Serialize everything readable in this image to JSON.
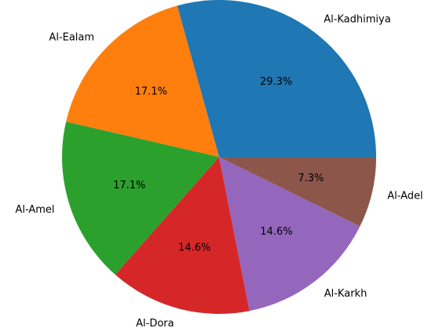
{
  "chart_data": {
    "type": "pie",
    "categories": [
      "Al-Kadhimiya",
      "Al-Ealam",
      "Al-Amel",
      "Al-Dora",
      "Al-Karkh",
      "Al-Adel"
    ],
    "values": [
      29.3,
      17.1,
      17.1,
      14.6,
      14.6,
      7.3
    ],
    "value_labels": [
      "29.3%",
      "17.1%",
      "17.1%",
      "14.6%",
      "14.6%",
      "7.3%"
    ],
    "colors": [
      "#1f77b4",
      "#ff7f0e",
      "#2ca02c",
      "#d62728",
      "#9467bd",
      "#8c564b"
    ]
  }
}
